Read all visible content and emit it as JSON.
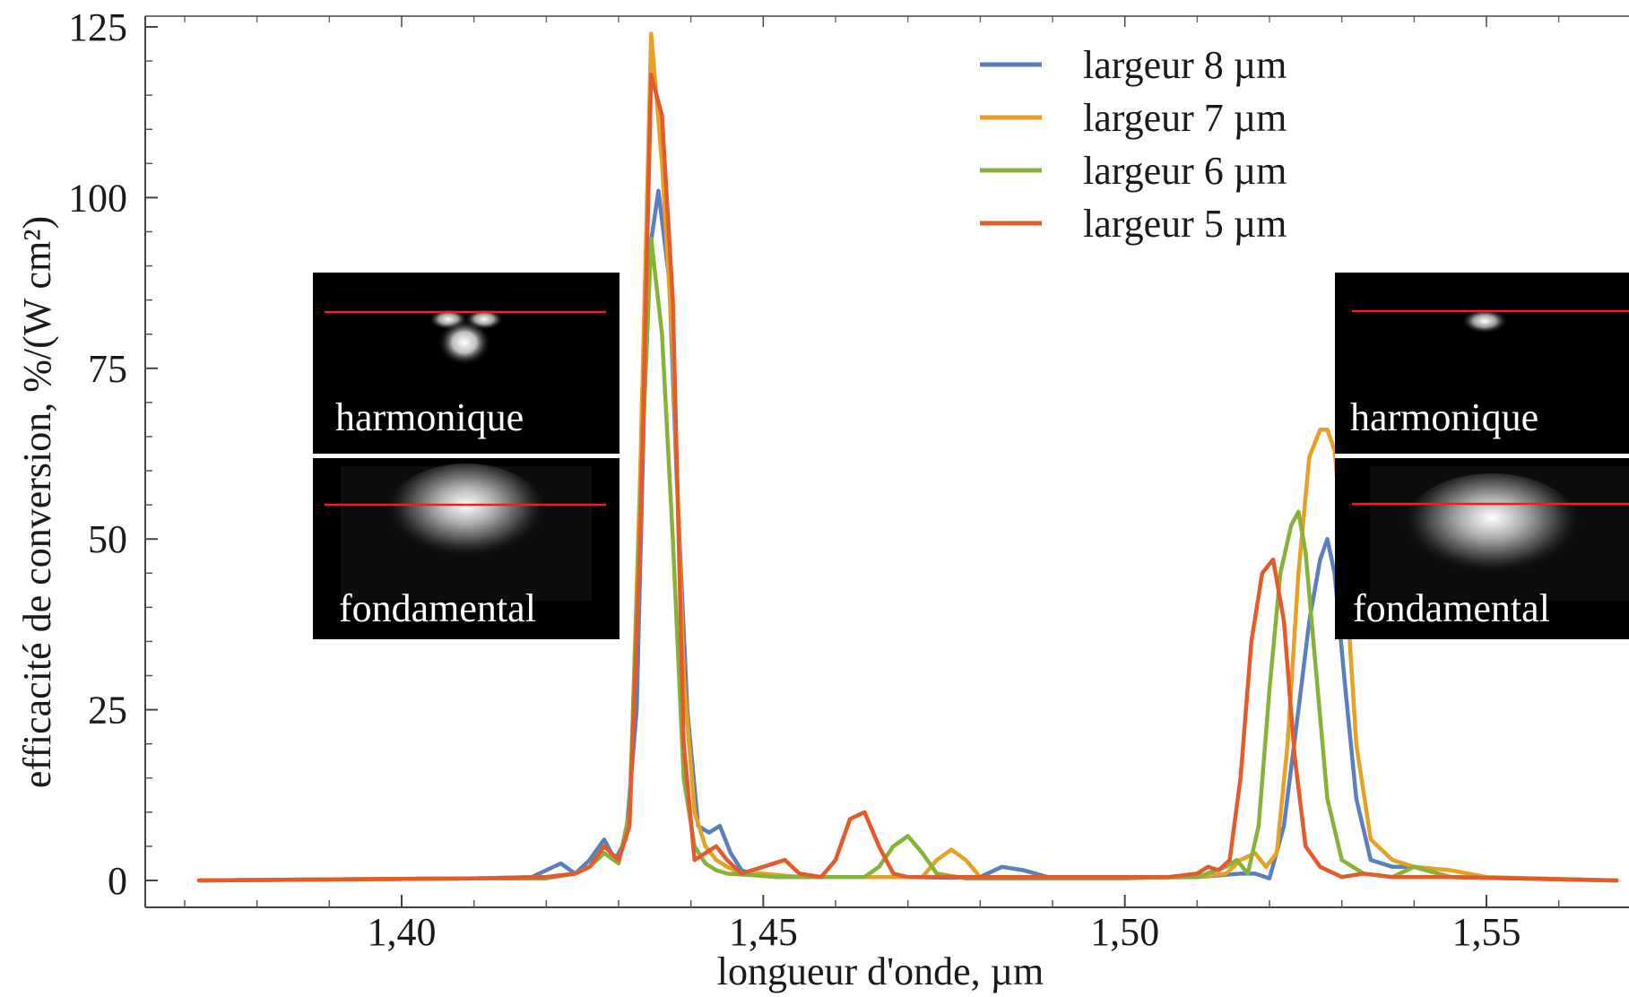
{
  "chart_data": {
    "type": "line",
    "title": "",
    "xlabel": "longueur d'onde, µm",
    "ylabel": "efficacité de conversion, %/(W cm²)",
    "xlim": [
      1.368,
      1.57
    ],
    "ylim": [
      -2,
      125
    ],
    "x_ticks": [
      {
        "value": 1.4,
        "label": "1,40"
      },
      {
        "value": 1.45,
        "label": "1,45"
      },
      {
        "value": 1.5,
        "label": "1,50"
      },
      {
        "value": 1.55,
        "label": "1,55"
      }
    ],
    "y_ticks": [
      {
        "value": 0,
        "label": "0"
      },
      {
        "value": 25,
        "label": "25"
      },
      {
        "value": 50,
        "label": "50"
      },
      {
        "value": 75,
        "label": "75"
      },
      {
        "value": 100,
        "label": "100"
      },
      {
        "value": 125,
        "label": "125"
      }
    ],
    "legend_position": "top-right",
    "grid": false,
    "series": [
      {
        "name": "largeur 8 µm",
        "color": "#5b7fbd",
        "x": [
          1.372,
          1.41,
          1.418,
          1.422,
          1.424,
          1.426,
          1.428,
          1.4295,
          1.431,
          1.4325,
          1.434,
          1.4355,
          1.437,
          1.438,
          1.4395,
          1.441,
          1.4425,
          1.444,
          1.4455,
          1.447,
          1.449,
          1.452,
          1.46,
          1.47,
          1.476,
          1.48,
          1.483,
          1.486,
          1.49,
          1.51,
          1.516,
          1.518,
          1.52,
          1.522,
          1.524,
          1.5255,
          1.527,
          1.528,
          1.529,
          1.5305,
          1.532,
          1.534,
          1.537,
          1.54,
          1.545,
          1.568
        ],
        "values": [
          0,
          0.3,
          0.5,
          2.5,
          1,
          3,
          6,
          3,
          6,
          25,
          90,
          101,
          88,
          60,
          25,
          8,
          7,
          8,
          4,
          1.5,
          0.8,
          0.5,
          0.5,
          0.5,
          0.4,
          0.5,
          2,
          1.5,
          0.3,
          0.5,
          1,
          1,
          0.3,
          8,
          25,
          38,
          47,
          50,
          45,
          28,
          12,
          3,
          2,
          2,
          0.5,
          0
        ]
      },
      {
        "name": "largeur 7 µm",
        "color": "#e6a024",
        "x": [
          1.372,
          1.41,
          1.42,
          1.424,
          1.426,
          1.428,
          1.43,
          1.4315,
          1.433,
          1.4345,
          1.436,
          1.4375,
          1.439,
          1.4405,
          1.442,
          1.4435,
          1.445,
          1.447,
          1.45,
          1.455,
          1.465,
          1.472,
          1.474,
          1.476,
          1.478,
          1.48,
          1.483,
          1.49,
          1.51,
          1.514,
          1.516,
          1.518,
          1.5195,
          1.521,
          1.5225,
          1.524,
          1.5255,
          1.527,
          1.528,
          1.529,
          1.5305,
          1.532,
          1.534,
          1.537,
          1.54,
          1.545,
          1.55,
          1.568
        ],
        "values": [
          0,
          0.3,
          0.5,
          1,
          2,
          5,
          3,
          8,
          60,
          124,
          105,
          78,
          30,
          10,
          5,
          3,
          2,
          1,
          1,
          0.5,
          0.5,
          0.5,
          3,
          4.5,
          3,
          0.5,
          0.3,
          0.3,
          0.5,
          1,
          3,
          4,
          2,
          4,
          20,
          45,
          62,
          66,
          66,
          63,
          45,
          20,
          6,
          3,
          2,
          1.5,
          0.5,
          0
        ]
      },
      {
        "name": "largeur 6 µm",
        "color": "#86b23a",
        "x": [
          1.372,
          1.41,
          1.42,
          1.424,
          1.426,
          1.428,
          1.43,
          1.4315,
          1.433,
          1.4345,
          1.436,
          1.4375,
          1.439,
          1.4405,
          1.442,
          1.4435,
          1.445,
          1.448,
          1.452,
          1.46,
          1.464,
          1.466,
          1.468,
          1.47,
          1.472,
          1.474,
          1.478,
          1.5,
          1.506,
          1.51,
          1.514,
          1.5155,
          1.517,
          1.5185,
          1.52,
          1.5215,
          1.523,
          1.524,
          1.525,
          1.5265,
          1.528,
          1.53,
          1.533,
          1.537,
          1.54,
          1.545,
          1.568
        ],
        "values": [
          0,
          0.3,
          0.3,
          1,
          2,
          4,
          2.5,
          10,
          55,
          94,
          80,
          50,
          15,
          5,
          2.5,
          1.5,
          1,
          0.8,
          0.5,
          0.5,
          0.5,
          2,
          5,
          6.5,
          4,
          1,
          0.3,
          0.3,
          0.5,
          0.5,
          2,
          3,
          1,
          8,
          28,
          45,
          52,
          54,
          48,
          30,
          12,
          3,
          1,
          0.5,
          2,
          0.5,
          0
        ]
      },
      {
        "name": "largeur 5 µm",
        "color": "#e55a2b",
        "x": [
          1.372,
          1.41,
          1.42,
          1.424,
          1.426,
          1.428,
          1.43,
          1.4315,
          1.433,
          1.4345,
          1.436,
          1.4375,
          1.439,
          1.4405,
          1.442,
          1.4435,
          1.445,
          1.447,
          1.45,
          1.453,
          1.455,
          1.458,
          1.46,
          1.462,
          1.464,
          1.466,
          1.468,
          1.47,
          1.48,
          1.5,
          1.506,
          1.51,
          1.5115,
          1.513,
          1.5145,
          1.516,
          1.5175,
          1.519,
          1.5205,
          1.522,
          1.5235,
          1.525,
          1.527,
          1.53,
          1.533,
          1.537,
          1.545,
          1.568
        ],
        "values": [
          0,
          0.3,
          0.5,
          1,
          2,
          5,
          3,
          8,
          50,
          118,
          112,
          85,
          20,
          3,
          4,
          5,
          3,
          1,
          2,
          3,
          1,
          0.5,
          3,
          9,
          10,
          5,
          1,
          0.5,
          0.5,
          0.5,
          0.5,
          1,
          2,
          1.5,
          3,
          15,
          35,
          45,
          47,
          38,
          18,
          5,
          2,
          0.5,
          1,
          0.5,
          0.5,
          0
        ]
      }
    ],
    "insets": [
      {
        "top_label": "harmonique",
        "bottom_label": "fondamental"
      },
      {
        "top_label": "harmonique",
        "bottom_label": "fondamental"
      }
    ]
  }
}
